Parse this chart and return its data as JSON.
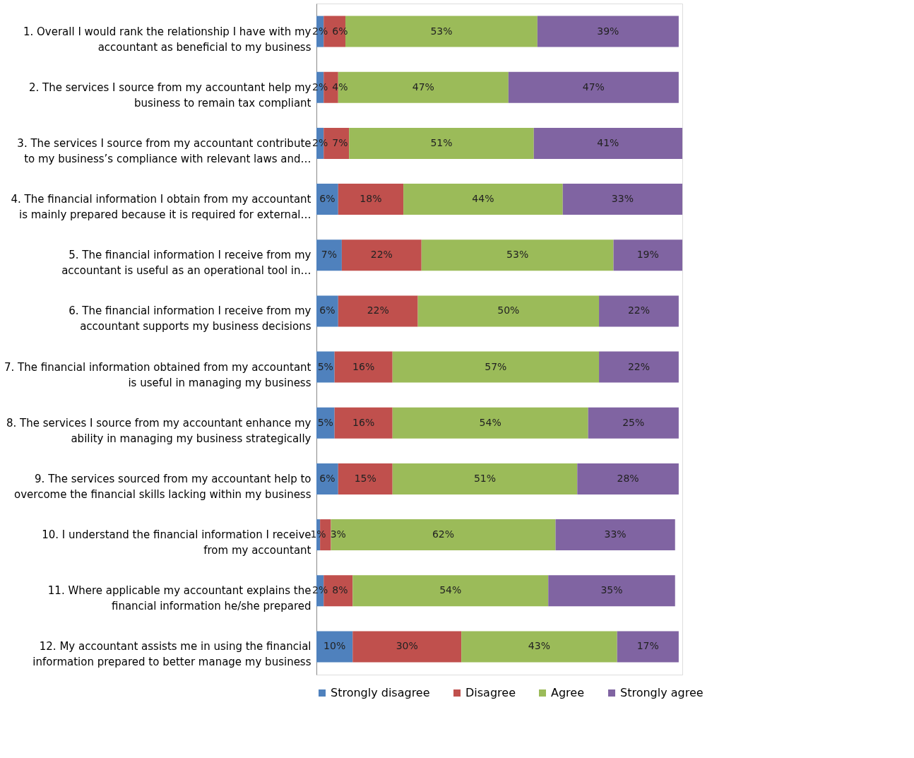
{
  "chart_data": {
    "type": "bar",
    "orientation": "horizontal",
    "stacked": true,
    "legend": "bottom",
    "tick_labels": "y",
    "categories": [
      "1. Overall I would rank the relationship I have with my accountant as beneficial to my business",
      "2. The services I source from my accountant help my business to remain tax compliant",
      "3. The services I source from my accountant contribute to my business’s compliance with relevant laws and…",
      "4. The financial information I obtain from my accountant is mainly prepared because it is required for external…",
      "5. The financial information I receive from my accountant is useful as an operational  tool in…",
      "6. The financial information I receive from my accountant supports my business decisions",
      "7. The financial information obtained from my accountant is useful in managing my business",
      "8. The services I source from my accountant enhance my ability in managing my business strategically",
      "9. The services sourced from my accountant help to overcome the financial skills lacking within my business",
      "10. I understand the financial information I receive from my accountant",
      "11. Where applicable my accountant explains the financial information he/she prepared",
      "12. My accountant assists me in using the financial information prepared to better manage my business"
    ],
    "series": [
      {
        "name": "Strongly disagree",
        "color": "#4f81bd",
        "values": [
          2,
          2,
          2,
          6,
          7,
          6,
          5,
          5,
          6,
          1,
          2,
          10
        ],
        "value_labels": [
          "2%",
          "2%",
          "2%",
          "6%",
          "7%",
          "6%",
          "5%",
          "5%",
          "6%",
          "1%",
          "2%",
          "10%"
        ]
      },
      {
        "name": "Disagree",
        "color": "#c0504d",
        "values": [
          6,
          4,
          7,
          18,
          22,
          22,
          16,
          16,
          15,
          3,
          8,
          30
        ],
        "value_labels": [
          "6%",
          "4%",
          "7%",
          "18%",
          "22%",
          "22%",
          "16%",
          "16%",
          "15%",
          "3%",
          "8%",
          "30%"
        ]
      },
      {
        "name": "Agree",
        "color": "#9bbb59",
        "values": [
          53,
          47,
          51,
          44,
          53,
          50,
          57,
          54,
          51,
          62,
          54,
          43
        ],
        "value_labels": [
          "53%",
          "47%",
          "51%",
          "44%",
          "53%",
          "50%",
          "57%",
          "54%",
          "51%",
          "62%",
          "54%",
          "43%"
        ]
      },
      {
        "name": "Strongly agree",
        "color": "#8064a2",
        "values": [
          39,
          47,
          41,
          33,
          19,
          22,
          22,
          25,
          28,
          33,
          35,
          17
        ],
        "value_labels": [
          "39%",
          "47%",
          "41%",
          "33%",
          "19%",
          "22%",
          "22%",
          "25%",
          "28%",
          "33%",
          "35%",
          "17%"
        ]
      }
    ]
  }
}
